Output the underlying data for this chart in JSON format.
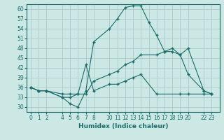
{
  "xlabel": "Humidex (Indice chaleur)",
  "bg_color": "#cce8e5",
  "line_color": "#1a6b6a",
  "grid_color": "#b0cfcc",
  "x_ticks": [
    0,
    1,
    2,
    4,
    5,
    6,
    7,
    8,
    10,
    11,
    12,
    13,
    14,
    15,
    16,
    17,
    18,
    19,
    20,
    22,
    23
  ],
  "y_ticks": [
    30,
    33,
    36,
    39,
    42,
    45,
    48,
    51,
    54,
    57,
    60
  ],
  "ylim": [
    28.5,
    61.5
  ],
  "xlim": [
    -0.5,
    24.0
  ],
  "line1_x": [
    0,
    1,
    2,
    4,
    5,
    6,
    7,
    8,
    10,
    11,
    12,
    13,
    14,
    15,
    16,
    17,
    18,
    19,
    20,
    22,
    23
  ],
  "line1_y": [
    36,
    35,
    35,
    33,
    31,
    30,
    35,
    50,
    54,
    57,
    60.5,
    61,
    61,
    56,
    52,
    47,
    48,
    46,
    48,
    35,
    34
  ],
  "line2_x": [
    0,
    1,
    2,
    4,
    5,
    6,
    7,
    8,
    10,
    11,
    12,
    13,
    14,
    16,
    17,
    18,
    19,
    20,
    22,
    23
  ],
  "line2_y": [
    36,
    35,
    35,
    34,
    34,
    34,
    34,
    38,
    40,
    41,
    43,
    44,
    46,
    46,
    47,
    47,
    46,
    40,
    35,
    34
  ],
  "line3_x": [
    0,
    1,
    2,
    4,
    5,
    6,
    7,
    8,
    10,
    11,
    12,
    13,
    14,
    16,
    19,
    20,
    22,
    23
  ],
  "line3_y": [
    36,
    35,
    35,
    33,
    33,
    34,
    43,
    35,
    37,
    37,
    38,
    39,
    40,
    34,
    34,
    34,
    34,
    34
  ]
}
